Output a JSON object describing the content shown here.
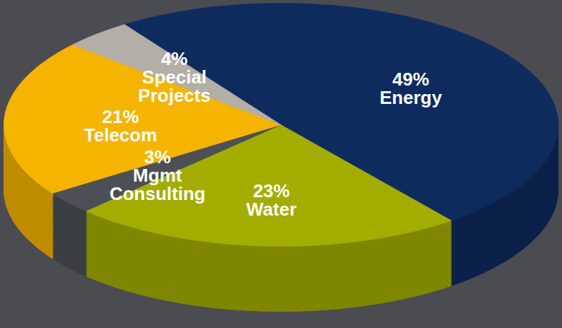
{
  "chart_data": {
    "type": "pie",
    "categories": [
      "Energy",
      "Water",
      "Mgmt Consulting",
      "Telecom",
      "Special Projects"
    ],
    "values": [
      49,
      23,
      3,
      21,
      4
    ],
    "value_labels": [
      "49%",
      "23%",
      "3%",
      "21%",
      "4%"
    ],
    "colors": [
      "#0e2b5e",
      "#a3ad00",
      "#4c4f55",
      "#f5b400",
      "#b3afa6"
    ],
    "data_labels": true
  }
}
